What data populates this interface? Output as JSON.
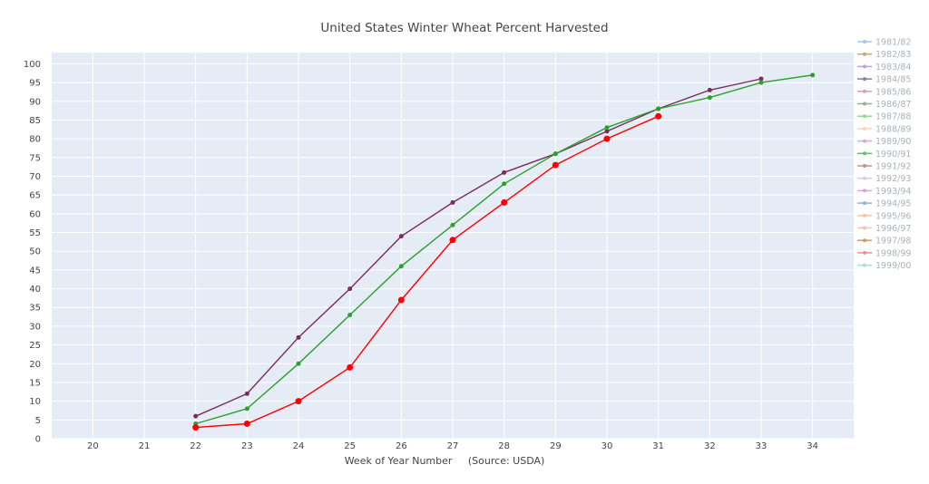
{
  "chart_data": {
    "type": "line",
    "title": "United States Winter Wheat Percent Harvested",
    "xlabel": "Week of Year Number     (Source: USDA)",
    "ylabel": "",
    "xlim": [
      19.2,
      34.8
    ],
    "ylim": [
      0,
      103
    ],
    "x_ticks": [
      20,
      21,
      22,
      23,
      24,
      25,
      26,
      27,
      28,
      29,
      30,
      31,
      32,
      33,
      34
    ],
    "y_ticks": [
      0,
      5,
      10,
      15,
      20,
      25,
      30,
      35,
      40,
      45,
      50,
      55,
      60,
      65,
      70,
      75,
      80,
      85,
      90,
      95,
      100
    ],
    "grid": true,
    "legend_position": "right",
    "legend": [
      {
        "name": "1981/82",
        "color": "#9ec6e8"
      },
      {
        "name": "1982/83",
        "color": "#c9a57a"
      },
      {
        "name": "1983/84",
        "color": "#b7a3d3"
      },
      {
        "name": "1984/85",
        "color": "#8c7aa8"
      },
      {
        "name": "1985/86",
        "color": "#dca0a8"
      },
      {
        "name": "1986/87",
        "color": "#8fb39a"
      },
      {
        "name": "1987/88",
        "color": "#8fdc8f"
      },
      {
        "name": "1988/89",
        "color": "#f4d6c6"
      },
      {
        "name": "1989/90",
        "color": "#d8a6e4"
      },
      {
        "name": "1990/91",
        "color": "#5ec46a"
      },
      {
        "name": "1991/92",
        "color": "#d48a8a"
      },
      {
        "name": "1992/93",
        "color": "#dcc8ea"
      },
      {
        "name": "1993/94",
        "color": "#d7a3d8"
      },
      {
        "name": "1994/95",
        "color": "#9aaed0"
      },
      {
        "name": "1995/96",
        "color": "#f2c79a"
      },
      {
        "name": "1996/97",
        "color": "#f6c2b8"
      },
      {
        "name": "1997/98",
        "color": "#c8a060"
      },
      {
        "name": "1998/99",
        "color": "#e89090"
      },
      {
        "name": "1999/00",
        "color": "#a6e0d2"
      }
    ],
    "series": [
      {
        "color": "#7a2d5c",
        "marker_size": 2.5,
        "x": [
          22,
          23,
          24,
          25,
          26,
          27,
          28,
          29,
          30,
          31,
          32,
          33
        ],
        "y": [
          6,
          12,
          27,
          40,
          54,
          63,
          71,
          76,
          82,
          88,
          93,
          96
        ]
      },
      {
        "color": "#2ca02c",
        "marker_size": 2.5,
        "x": [
          22,
          23,
          24,
          25,
          26,
          27,
          28,
          29,
          30,
          31,
          32,
          33,
          34
        ],
        "y": [
          4,
          8,
          20,
          33,
          46,
          57,
          68,
          76,
          83,
          88,
          91,
          95,
          97
        ]
      },
      {
        "color": "#ff0000",
        "marker_size": 3.5,
        "x": [
          22,
          23,
          24,
          25,
          26,
          27,
          28,
          29,
          30,
          31
        ],
        "y": [
          3,
          4,
          10,
          19,
          37,
          53,
          63,
          73,
          80,
          86
        ]
      }
    ]
  }
}
